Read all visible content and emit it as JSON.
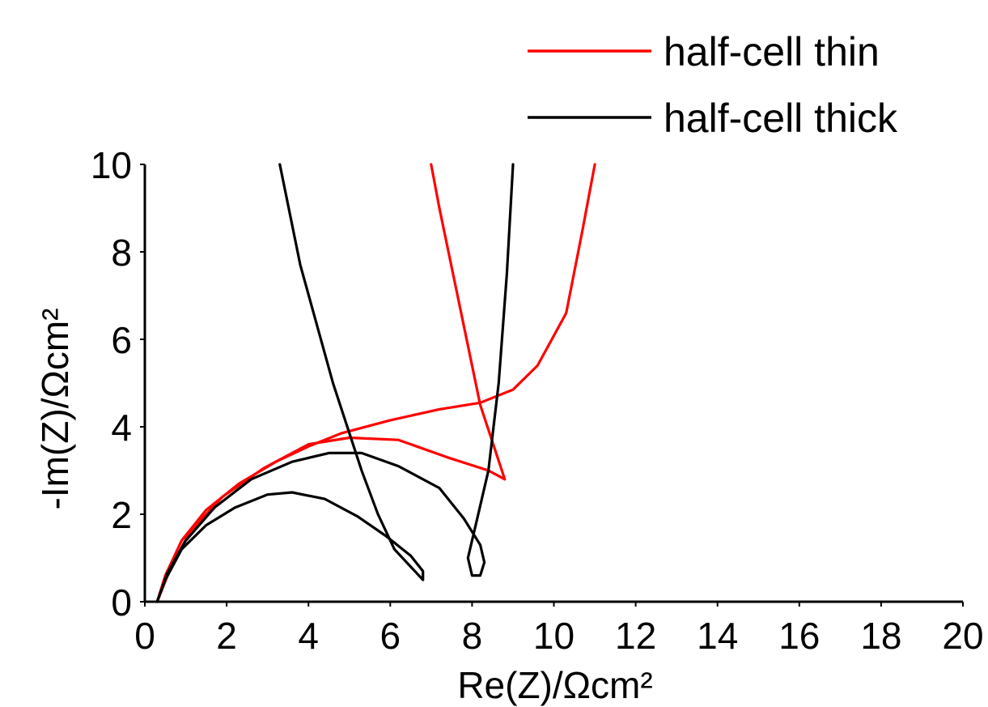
{
  "chart_data": {
    "type": "line",
    "xlabel": "Re(Z)/Ωcm²",
    "ylabel": "-Im(Z)/Ωcm²",
    "xlim": [
      0,
      20
    ],
    "ylim": [
      0,
      10
    ],
    "x_ticks": [
      0,
      2,
      4,
      6,
      8,
      10,
      12,
      14,
      16,
      18,
      20
    ],
    "y_ticks": [
      0,
      2,
      4,
      6,
      8,
      10
    ],
    "grid": false,
    "legend_position": "top-right, above plot",
    "series": [
      {
        "name": "half-cell thin",
        "color": "#ff0000",
        "points": [
          [
            0.3,
            0
          ],
          [
            0.5,
            0.6
          ],
          [
            0.9,
            1.4
          ],
          [
            1.5,
            2.1
          ],
          [
            2.3,
            2.7
          ],
          [
            3.2,
            3.2
          ],
          [
            4.0,
            3.55
          ],
          [
            4.8,
            3.85
          ],
          [
            6.0,
            4.15
          ],
          [
            7.2,
            4.4
          ],
          [
            8.2,
            4.55
          ],
          [
            9.0,
            4.85
          ],
          [
            9.6,
            5.4
          ],
          [
            10.3,
            6.6
          ],
          [
            10.7,
            8.5
          ],
          [
            11.0,
            10
          ]
        ]
      },
      {
        "name": "",
        "color": "#ff0000",
        "points": [
          [
            0.3,
            0
          ],
          [
            0.6,
            0.7
          ],
          [
            1.1,
            1.6
          ],
          [
            1.9,
            2.4
          ],
          [
            2.9,
            3.05
          ],
          [
            4.0,
            3.6
          ],
          [
            5.0,
            3.75
          ],
          [
            6.2,
            3.7
          ],
          [
            7.4,
            3.3
          ],
          [
            8.4,
            3.0
          ],
          [
            8.8,
            2.8
          ],
          [
            8.2,
            4.5
          ],
          [
            7.6,
            7.2
          ],
          [
            7.2,
            9.0
          ],
          [
            7.0,
            10
          ]
        ]
      },
      {
        "name": "half-cell thick",
        "color": "#000000",
        "points": [
          [
            0.3,
            0
          ],
          [
            0.5,
            0.5
          ],
          [
            0.9,
            1.2
          ],
          [
            1.5,
            1.75
          ],
          [
            2.2,
            2.15
          ],
          [
            3.0,
            2.45
          ],
          [
            3.6,
            2.5
          ],
          [
            4.4,
            2.35
          ],
          [
            5.2,
            1.95
          ],
          [
            5.9,
            1.5
          ],
          [
            6.5,
            1.05
          ],
          [
            6.8,
            0.7
          ],
          [
            6.8,
            0.5
          ],
          [
            6.6,
            0.7
          ],
          [
            6.1,
            1.2
          ],
          [
            5.7,
            2.0
          ],
          [
            5.3,
            3.0
          ],
          [
            4.6,
            5.0
          ],
          [
            3.8,
            7.7
          ],
          [
            3.3,
            10
          ]
        ]
      },
      {
        "name": "",
        "color": "#000000",
        "points": [
          [
            0.3,
            0
          ],
          [
            0.55,
            0.65
          ],
          [
            1.0,
            1.4
          ],
          [
            1.7,
            2.15
          ],
          [
            2.6,
            2.8
          ],
          [
            3.6,
            3.2
          ],
          [
            4.5,
            3.4
          ],
          [
            5.3,
            3.4
          ],
          [
            6.2,
            3.1
          ],
          [
            7.2,
            2.6
          ],
          [
            7.8,
            1.9
          ],
          [
            8.2,
            1.3
          ],
          [
            8.3,
            0.9
          ],
          [
            8.2,
            0.6
          ],
          [
            8.0,
            0.6
          ],
          [
            7.9,
            1.0
          ],
          [
            8.1,
            1.8
          ],
          [
            8.4,
            3.0
          ],
          [
            8.65,
            5.0
          ],
          [
            8.85,
            7.5
          ],
          [
            9.0,
            10
          ]
        ]
      }
    ]
  }
}
